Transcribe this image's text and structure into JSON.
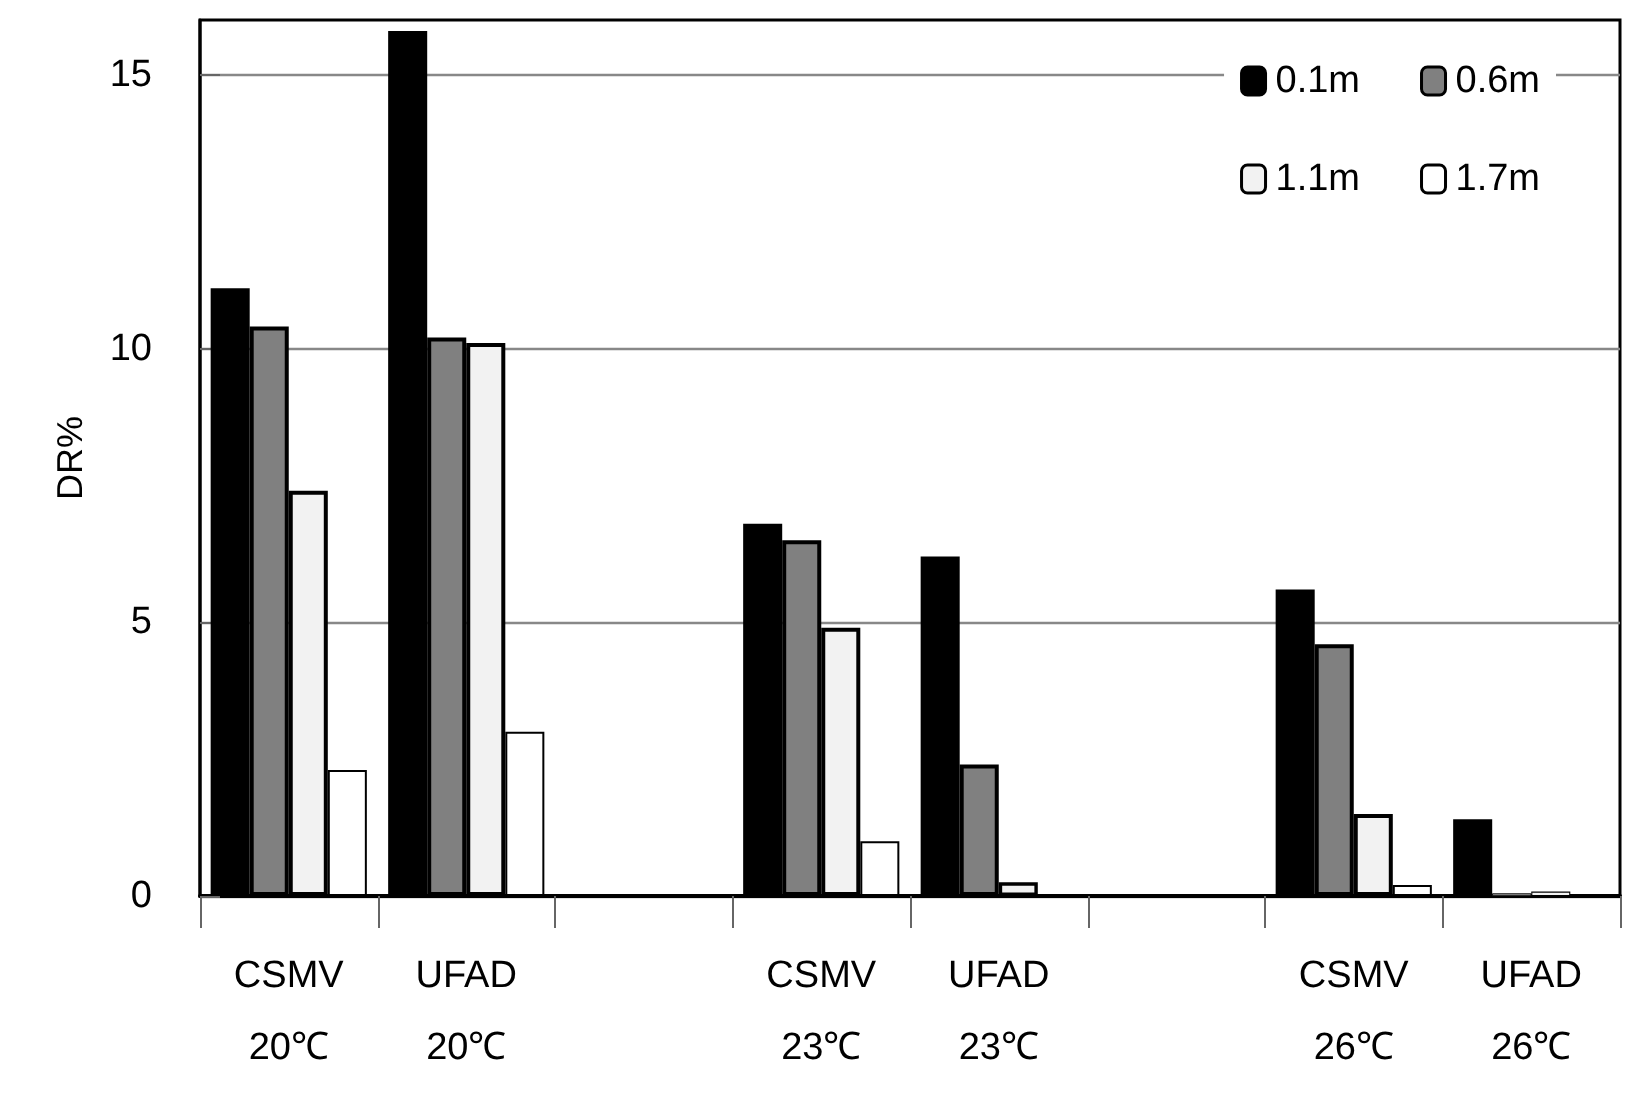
{
  "chart_data": {
    "type": "bar",
    "ylabel": "DR%",
    "categories": [
      "CSMV\n20℃",
      "UFAD\n20℃",
      null,
      "CSMV\n23℃",
      "UFAD\n23℃",
      null,
      "CSMV\n26℃",
      "UFAD\n26℃"
    ],
    "series": [
      {
        "name": "0.1m",
        "color": "#000000",
        "values": [
          11.1,
          15.8,
          null,
          6.8,
          6.2,
          null,
          5.6,
          1.4
        ]
      },
      {
        "name": "0.6m",
        "color": "#808080",
        "values": [
          10.4,
          10.2,
          null,
          6.5,
          2.4,
          null,
          4.6,
          0.05
        ]
      },
      {
        "name": "1.1m",
        "color": "#f2f2f2",
        "values": [
          7.4,
          10.1,
          null,
          4.9,
          0.25,
          null,
          1.5,
          0.08
        ]
      },
      {
        "name": "1.7m",
        "color": "#ffffff",
        "values": [
          2.3,
          3.0,
          null,
          1.0,
          0,
          null,
          0.2,
          0
        ]
      }
    ],
    "ylim": [
      0,
      16
    ],
    "yticks": [
      0,
      5,
      10,
      15
    ],
    "grid": "y",
    "legend": "top right"
  }
}
